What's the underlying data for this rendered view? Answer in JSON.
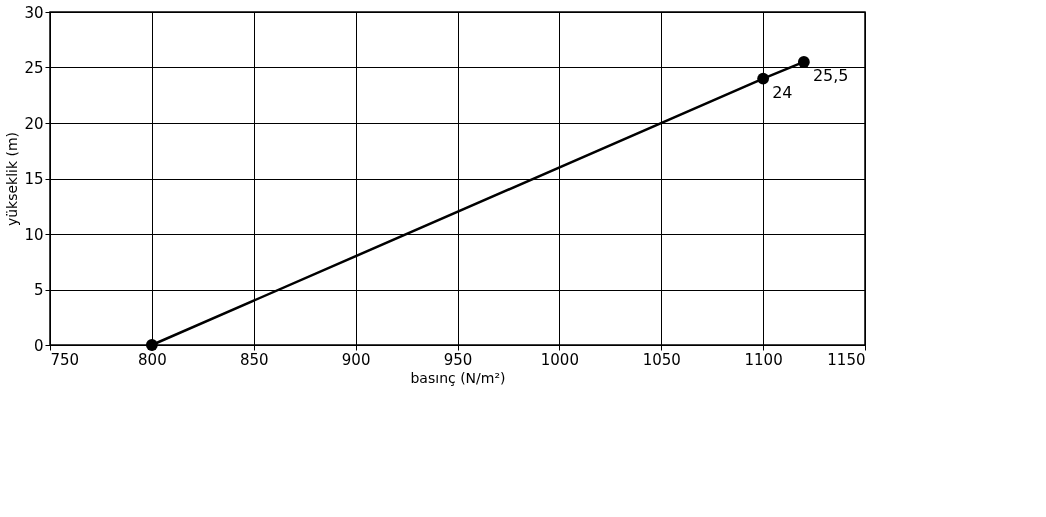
{
  "chart_data": {
    "type": "line",
    "xlabel": "basınç (N/m²)",
    "ylabel": "yükseklik (m)",
    "x": [
      800,
      1100,
      1120
    ],
    "series": [
      {
        "color": "#000000",
        "values": [
          0,
          24,
          25.5
        ],
        "value_labels": [
          null,
          "24",
          "25,5"
        ]
      }
    ],
    "xlim": [
      750,
      1150
    ],
    "xticks": [
      750,
      800,
      850,
      900,
      950,
      1000,
      1050,
      1100,
      1150
    ],
    "ylim": [
      0,
      30
    ],
    "yticks": [
      0,
      5,
      10,
      15,
      20,
      25,
      30
    ],
    "grid": true,
    "marker": "circle",
    "line_style": "solid"
  }
}
